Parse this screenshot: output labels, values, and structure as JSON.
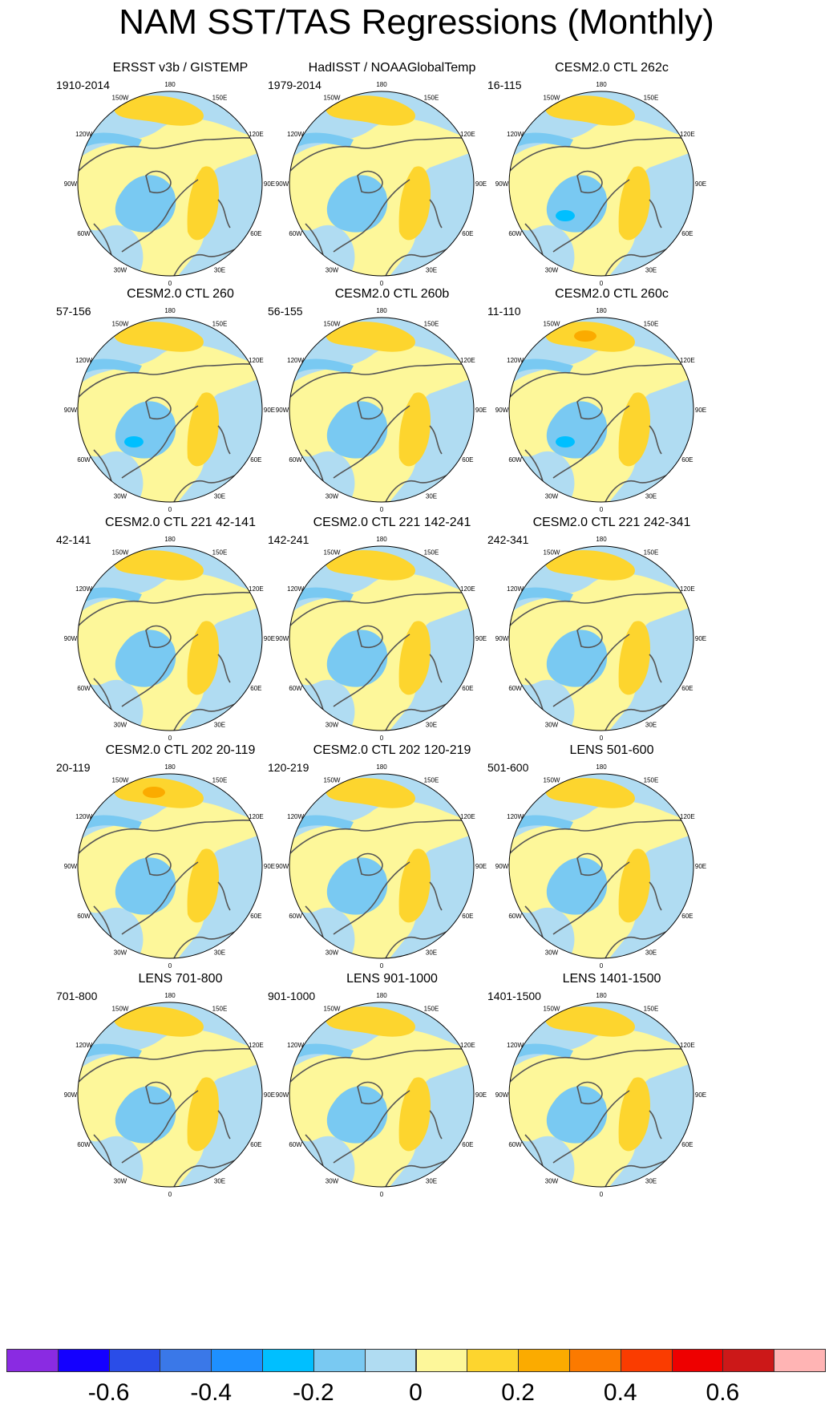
{
  "title": "NAM SST/TAS Regressions (Monthly)",
  "longitude_labels": [
    "180",
    "150E",
    "120E",
    "90E",
    "60E",
    "30E",
    "0",
    "30W",
    "60W",
    "90W",
    "120W",
    "150W"
  ],
  "panels": [
    {
      "title": "ERSST v3b / GISTEMP",
      "years": "1910-2014"
    },
    {
      "title": "HadISST / NOAAGlobalTemp",
      "years": "1979-2014"
    },
    {
      "title": "CESM2.0 CTL 262c",
      "years": "16-115"
    },
    {
      "title": "CESM2.0 CTL 260",
      "years": "57-156"
    },
    {
      "title": "CESM2.0 CTL 260b",
      "years": "56-155"
    },
    {
      "title": "CESM2.0 CTL 260c",
      "years": "11-110"
    },
    {
      "title": "CESM2.0 CTL 221 42-141",
      "years": "42-141"
    },
    {
      "title": "CESM2.0 CTL 221 142-241",
      "years": "142-241"
    },
    {
      "title": "CESM2.0 CTL 221 242-341",
      "years": "242-341"
    },
    {
      "title": "CESM2.0 CTL 202 20-119",
      "years": "20-119"
    },
    {
      "title": "CESM2.0 CTL 202 120-219",
      "years": "120-219"
    },
    {
      "title": "LENS 501-600",
      "years": "501-600"
    },
    {
      "title": "LENS 701-800",
      "years": "701-800"
    },
    {
      "title": "LENS 901-1000",
      "years": "901-1000"
    },
    {
      "title": "LENS 1401-1500",
      "years": "1401-1500"
    }
  ],
  "colorbar": {
    "colors": [
      "#8a2be2",
      "#1400ff",
      "#2a4de8",
      "#3a78e8",
      "#1e90ff",
      "#00bfff",
      "#79c9f2",
      "#b0dcf2",
      "#fdf79a",
      "#fdd52e",
      "#fbab00",
      "#fb7a00",
      "#fa3c00",
      "#ee0000",
      "#cc1818",
      "#ffb4b4"
    ],
    "tick_labels": [
      "-0.6",
      "-0.4",
      "-0.2",
      "0",
      "0.2",
      "0.4",
      "0.6"
    ]
  },
  "colors": {
    "negative_weak": "#b0dcf2",
    "negative_moderate": "#79c9f2",
    "negative_strong": "#00bfff",
    "positive_weak": "#fdf79a",
    "positive_moderate": "#fdd52e",
    "positive_strong": "#fbab00",
    "coast": "#555555"
  }
}
